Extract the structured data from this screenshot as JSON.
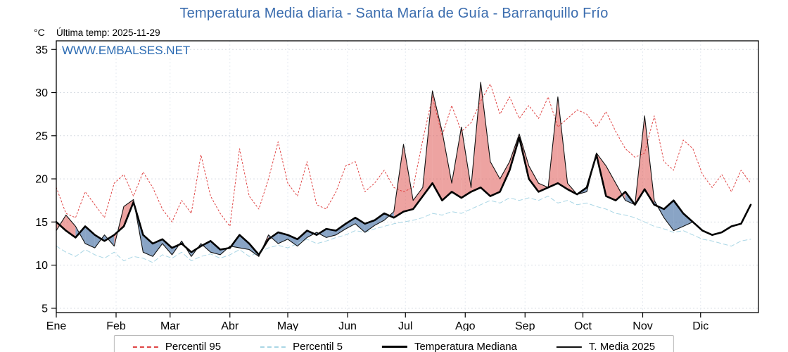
{
  "header": {
    "title": "Temperatura Media diaria - Santa María de Guía - Barranquillo Frío",
    "unit_label": "°C",
    "last_temp": "Última temp: 2025-11-29",
    "watermark": "WWW.EMBALSES.NET"
  },
  "chart_data": {
    "type": "line",
    "title": "Temperatura Media diaria - Santa María de Guía - Barranquillo Frío",
    "ylabel": "°C",
    "ylim": [
      4.5,
      36
    ],
    "yticks": [
      5,
      10,
      15,
      20,
      25,
      30,
      35
    ],
    "days_in_year": 365,
    "grid": true,
    "legend_position": "bottom",
    "months": [
      {
        "label": "Ene",
        "day": 1
      },
      {
        "label": "Feb",
        "day": 32
      },
      {
        "label": "Mar",
        "day": 60
      },
      {
        "label": "Abr",
        "day": 91
      },
      {
        "label": "May",
        "day": 121
      },
      {
        "label": "Jun",
        "day": 152
      },
      {
        "label": "Jul",
        "day": 182
      },
      {
        "label": "Ago",
        "day": 213
      },
      {
        "label": "Sep",
        "day": 244
      },
      {
        "label": "Oct",
        "day": 274
      },
      {
        "label": "Nov",
        "day": 305
      },
      {
        "label": "Dic",
        "day": 335
      }
    ],
    "x_days": [
      1,
      6,
      11,
      16,
      21,
      26,
      31,
      36,
      41,
      46,
      51,
      56,
      61,
      66,
      71,
      76,
      81,
      86,
      91,
      96,
      101,
      106,
      111,
      116,
      121,
      126,
      131,
      136,
      141,
      146,
      151,
      156,
      161,
      166,
      171,
      176,
      181,
      186,
      191,
      196,
      201,
      206,
      211,
      216,
      221,
      226,
      231,
      236,
      241,
      246,
      251,
      256,
      261,
      266,
      271,
      276,
      281,
      286,
      291,
      296,
      301,
      306,
      311,
      316,
      321,
      326,
      331,
      336,
      341,
      346,
      351,
      356,
      361
    ],
    "series": [
      {
        "name": "Percentil 95",
        "color": "#e04545",
        "width": 1,
        "dash": "2 3",
        "values": [
          19.0,
          16.0,
          15.5,
          18.5,
          17.0,
          15.5,
          19.5,
          20.5,
          18.0,
          20.8,
          19.0,
          16.5,
          15.0,
          17.5,
          16.0,
          22.8,
          18.0,
          16.0,
          14.5,
          23.5,
          18.0,
          16.5,
          20.0,
          24.3,
          19.5,
          18.0,
          22.0,
          17.0,
          16.5,
          18.5,
          21.5,
          22.0,
          18.5,
          19.5,
          21.0,
          19.0,
          18.5,
          19.0,
          24.5,
          29.5,
          25.0,
          28.5,
          25.5,
          26.5,
          29.0,
          31.0,
          27.5,
          29.5,
          27.0,
          28.5,
          27.0,
          29.5,
          26.0,
          27.0,
          28.0,
          27.5,
          26.0,
          27.8,
          25.5,
          23.5,
          22.5,
          23.0,
          27.3,
          22.0,
          21.0,
          24.5,
          23.5,
          20.5,
          19.0,
          20.5,
          18.5,
          21.0,
          19.5
        ]
      },
      {
        "name": "Percentil 5",
        "color": "#a9d6e5",
        "width": 1,
        "dash": "6 4",
        "values": [
          12.2,
          11.5,
          11.0,
          11.8,
          11.2,
          10.8,
          11.5,
          10.5,
          11.0,
          10.8,
          10.3,
          11.2,
          10.8,
          11.5,
          10.5,
          11.0,
          11.3,
          10.8,
          11.2,
          11.8,
          11.0,
          11.5,
          12.0,
          12.3,
          12.0,
          12.5,
          13.0,
          12.5,
          12.8,
          13.2,
          13.5,
          14.0,
          13.8,
          14.2,
          14.5,
          14.8,
          15.0,
          15.2,
          15.5,
          16.0,
          15.8,
          16.2,
          16.0,
          16.5,
          17.0,
          17.5,
          17.2,
          17.8,
          17.5,
          17.8,
          17.5,
          18.0,
          17.2,
          17.5,
          17.0,
          17.2,
          16.8,
          16.5,
          16.0,
          15.8,
          15.5,
          15.0,
          14.5,
          14.2,
          13.8,
          14.0,
          13.5,
          13.0,
          12.8,
          12.5,
          12.2,
          12.8,
          13.0
        ]
      },
      {
        "name": "Temperatura Mediana",
        "color": "#000000",
        "width": 2.6,
        "dash": null,
        "values": [
          15.0,
          14.0,
          13.2,
          14.5,
          13.5,
          12.8,
          13.5,
          14.5,
          17.3,
          13.5,
          12.5,
          13.0,
          12.0,
          12.5,
          11.5,
          12.2,
          12.8,
          11.8,
          12.0,
          13.5,
          12.5,
          11.2,
          13.0,
          13.8,
          13.5,
          13.0,
          14.0,
          13.5,
          14.2,
          14.0,
          14.8,
          15.5,
          14.8,
          15.2,
          16.0,
          15.5,
          16.2,
          16.5,
          18.0,
          19.5,
          17.5,
          18.5,
          17.8,
          18.5,
          19.0,
          18.0,
          18.5,
          21.0,
          24.8,
          20.0,
          18.5,
          19.0,
          19.5,
          18.8,
          18.2,
          19.0,
          22.8,
          18.0,
          17.5,
          18.5,
          17.0,
          18.8,
          17.0,
          16.5,
          17.5,
          16.0,
          15.0,
          14.0,
          13.5,
          13.8,
          14.5,
          14.8,
          17.0
        ]
      },
      {
        "name": "T. Media 2025",
        "color": "#111111",
        "width": 1.1,
        "dash": null,
        "values": [
          14.0,
          15.8,
          14.5,
          12.5,
          12.0,
          13.5,
          12.2,
          16.8,
          17.6,
          11.5,
          11.0,
          12.5,
          11.2,
          12.8,
          11.0,
          12.5,
          11.5,
          11.2,
          12.2,
          12.0,
          11.8,
          11.0,
          13.5,
          12.5,
          13.0,
          12.2,
          13.2,
          13.8,
          13.2,
          13.5,
          14.2,
          14.8,
          13.8,
          14.6,
          15.2,
          16.2,
          24.0,
          17.5,
          19.0,
          30.2,
          25.5,
          19.5,
          26.0,
          19.0,
          31.2,
          22.0,
          20.0,
          22.0,
          25.2,
          21.5,
          19.5,
          19.0,
          29.5,
          19.5,
          18.2,
          18.5,
          23.0,
          21.5,
          19.5,
          17.5,
          17.0,
          27.3,
          17.5,
          15.5,
          14.0,
          14.5,
          15.0,
          null,
          null,
          null,
          null,
          null,
          null
        ]
      }
    ],
    "fills": {
      "between": [
        "T. Media 2025",
        "Temperatura Mediana"
      ],
      "above_color": "rgba(222,88,83,0.55)",
      "below_color": "rgba(73,115,166,0.65)"
    }
  }
}
